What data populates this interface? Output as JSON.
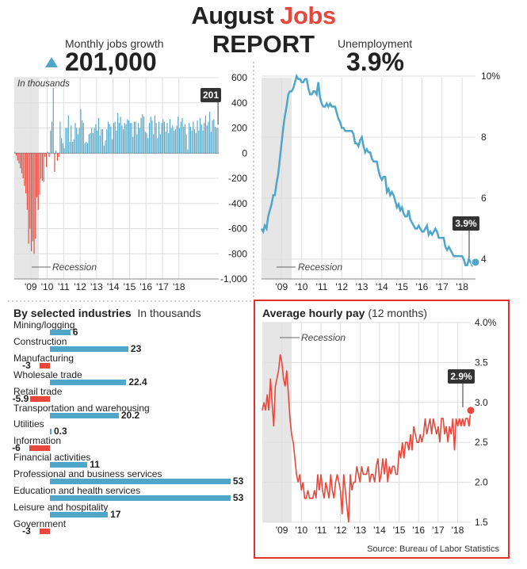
{
  "header": {
    "title_part1": "August ",
    "title_highlight": "Jobs",
    "title_line2": "REPORT",
    "jobs_label": "Monthly jobs growth",
    "jobs_value": "201,000",
    "unemp_label": "Unemployment",
    "unemp_value": "3.9%"
  },
  "colors": {
    "blue": "#4fa6c8",
    "red": "#e8483b",
    "frame": "#e03030",
    "recession": "#e6e6e6"
  },
  "chart_data": [
    {
      "type": "bar",
      "name": "Monthly jobs growth",
      "unit_label": "In thousands",
      "recession_label": "Recession",
      "x_tick_labels": [
        "'09",
        "'10",
        "'11",
        "'12",
        "'13",
        "'14",
        "'15",
        "'16",
        "'17",
        "'18"
      ],
      "y_ticks": [
        600,
        400,
        200,
        0,
        -200,
        -400,
        -600,
        -800,
        -1000
      ],
      "y_tick_labels": [
        "600",
        "400",
        "200",
        "0",
        "-200",
        "-400",
        "-600",
        "-800",
        "-1,000"
      ],
      "ylim": [
        -1000,
        600
      ],
      "start": "2008-01",
      "recession_months": [
        0,
        18
      ],
      "values": [
        10,
        -20,
        -60,
        -80,
        -120,
        -160,
        -200,
        -260,
        -320,
        -450,
        -720,
        -600,
        -780,
        -700,
        -800,
        -680,
        -350,
        -450,
        -330,
        -200,
        -220,
        -230,
        -30,
        -110,
        10,
        -30,
        180,
        250,
        520,
        -150,
        20,
        -60,
        -30,
        250,
        120,
        80,
        40,
        200,
        200,
        300,
        90,
        220,
        90,
        110,
        240,
        200,
        150,
        200,
        350,
        260,
        240,
        80,
        90,
        80,
        150,
        160,
        200,
        160,
        200,
        230,
        180,
        280,
        140,
        190,
        190,
        60,
        100,
        190,
        250,
        230,
        210,
        110,
        240,
        250,
        180,
        320,
        240,
        290,
        220,
        190,
        240,
        230,
        270,
        260,
        240,
        240,
        130,
        250,
        250,
        150,
        240,
        200,
        280,
        310,
        290,
        170,
        160,
        120,
        240,
        290,
        260,
        150,
        300,
        240,
        120,
        250,
        150,
        240,
        270,
        250,
        170,
        240,
        160,
        270,
        200,
        220,
        180,
        190,
        220,
        290,
        200,
        250,
        280,
        210,
        230,
        150,
        30,
        240,
        210,
        180,
        250,
        190,
        160,
        260,
        180,
        280,
        230,
        180,
        240,
        300,
        220,
        250,
        330,
        170,
        260,
        270,
        210,
        200,
        201
      ],
      "last_label": "201"
    },
    {
      "type": "line",
      "name": "Unemployment",
      "recession_label": "Recession",
      "x_tick_labels": [
        "'09",
        "'10",
        "'11",
        "'12",
        "'13",
        "'14",
        "'15",
        "'16",
        "'17",
        "'18"
      ],
      "y_tick_labels": [
        "10%",
        "8",
        "6",
        "4"
      ],
      "y_ticks": [
        10,
        8,
        6,
        4
      ],
      "ylim": [
        3.4,
        10
      ],
      "start": "2008-01",
      "recession_months": [
        0,
        18
      ],
      "values": [
        5.0,
        4.9,
        5.1,
        5.0,
        5.4,
        5.6,
        5.8,
        6.1,
        6.1,
        6.5,
        6.8,
        7.3,
        7.8,
        8.3,
        8.7,
        9.0,
        9.4,
        9.5,
        9.5,
        9.6,
        9.8,
        10.0,
        9.9,
        9.9,
        9.8,
        9.8,
        9.9,
        9.9,
        9.6,
        9.4,
        9.4,
        9.5,
        9.5,
        9.4,
        9.8,
        9.3,
        9.1,
        9.0,
        9.0,
        9.1,
        9.0,
        9.1,
        9.0,
        9.0,
        9.0,
        8.8,
        8.6,
        8.5,
        8.3,
        8.3,
        8.2,
        8.2,
        8.2,
        8.2,
        8.2,
        8.1,
        7.8,
        7.8,
        7.7,
        7.9,
        8.0,
        7.7,
        7.5,
        7.6,
        7.5,
        7.5,
        7.3,
        7.2,
        7.2,
        7.2,
        6.9,
        6.7,
        6.6,
        6.7,
        6.7,
        6.2,
        6.3,
        6.1,
        6.2,
        6.1,
        5.9,
        5.7,
        5.8,
        5.6,
        5.7,
        5.5,
        5.4,
        5.4,
        5.6,
        5.3,
        5.2,
        5.1,
        5.0,
        5.0,
        5.1,
        5.0,
        4.9,
        4.9,
        5.0,
        5.1,
        4.8,
        4.9,
        4.8,
        4.9,
        5.0,
        4.9,
        4.7,
        4.7,
        4.7,
        4.7,
        4.4,
        4.3,
        4.4,
        4.3,
        4.2,
        4.1,
        4.1,
        4.1,
        4.1,
        4.1,
        4.1,
        4.0,
        3.8,
        3.8,
        4.0,
        3.9,
        3.8,
        3.9,
        3.9
      ],
      "last_label": "3.9%"
    },
    {
      "type": "bar",
      "orientation": "horizontal",
      "name": "By selected industries",
      "title": "By selected industries",
      "subtitle": "In thousands",
      "categories": [
        "Mining/logging",
        "Construction",
        "Manufacturing",
        "Wholesale trade",
        "Retail trade",
        "Transportation and warehousing",
        "Utilities",
        "Information",
        "Financial activities",
        "Professional and business services",
        "Education and health services",
        "Leisure and hospitality",
        "Government"
      ],
      "values": [
        6,
        23,
        -3,
        22.4,
        -5.9,
        20.2,
        0.3,
        -6,
        11,
        53,
        53,
        17,
        -3
      ],
      "value_labels": [
        "6",
        "23",
        "-3",
        "22.4",
        "-5.9",
        "20.2",
        "0.3",
        "-6",
        "11",
        "53",
        "53",
        "17",
        "-3"
      ]
    },
    {
      "type": "line",
      "name": "Average hourly pay",
      "title": "Average hourly pay",
      "subtitle": "(12 months)",
      "recession_label": "Recession",
      "source": "Source: Bureau of Labor Statistics",
      "x_tick_labels": [
        "'09",
        "'10",
        "'11",
        "'12",
        "'13",
        "'14",
        "'15",
        "'16",
        "'17",
        "'18"
      ],
      "y_ticks": [
        4.0,
        3.5,
        3.0,
        2.5,
        2.0,
        1.5
      ],
      "y_tick_labels": [
        "4.0%",
        "3.5",
        "3.0",
        "2.5",
        "2.0",
        "1.5"
      ],
      "ylim": [
        1.5,
        4.0
      ],
      "start": "2008-01",
      "recession_months": [
        0,
        18
      ],
      "values": [
        2.9,
        3.0,
        2.9,
        3.1,
        2.9,
        3.3,
        3.0,
        2.7,
        3.2,
        3.3,
        3.4,
        3.6,
        3.5,
        3.3,
        3.2,
        3.4,
        3.1,
        2.8,
        2.6,
        2.5,
        2.3,
        2.1,
        2.0,
        2.1,
        1.9,
        2.0,
        1.8,
        1.8,
        1.9,
        1.8,
        1.8,
        1.8,
        1.9,
        1.8,
        2.1,
        1.9,
        2.1,
        1.9,
        1.8,
        2.0,
        1.9,
        1.8,
        2.1,
        1.9,
        1.8,
        2.0,
        2.1,
        2.0,
        1.9,
        1.6,
        2.1,
        1.9,
        1.7,
        1.5,
        2.1,
        1.9,
        2.0,
        2.0,
        2.2,
        2.1,
        2.0,
        2.2,
        2.1,
        2.1,
        2.1,
        2.2,
        2.0,
        2.1,
        2.1,
        2.0,
        2.2,
        2.3,
        2.0,
        2.1,
        2.3,
        2.1,
        2.3,
        2.0,
        2.2,
        2.1,
        2.2,
        2.2,
        2.1,
        2.1,
        2.4,
        2.3,
        2.5,
        2.3,
        2.5,
        2.5,
        2.4,
        2.6,
        2.4,
        2.7,
        2.6,
        2.5,
        2.5,
        2.6,
        2.5,
        2.6,
        2.8,
        2.6,
        2.7,
        2.8,
        2.6,
        2.8,
        2.7,
        2.6,
        2.7,
        2.5,
        2.8,
        2.8,
        2.6,
        2.7,
        2.5,
        2.7,
        2.6,
        2.8,
        2.4,
        2.8,
        2.7,
        2.8,
        2.7,
        2.8,
        2.7,
        2.8,
        2.8,
        2.7,
        2.9
      ],
      "last_label": "2.9%"
    }
  ]
}
